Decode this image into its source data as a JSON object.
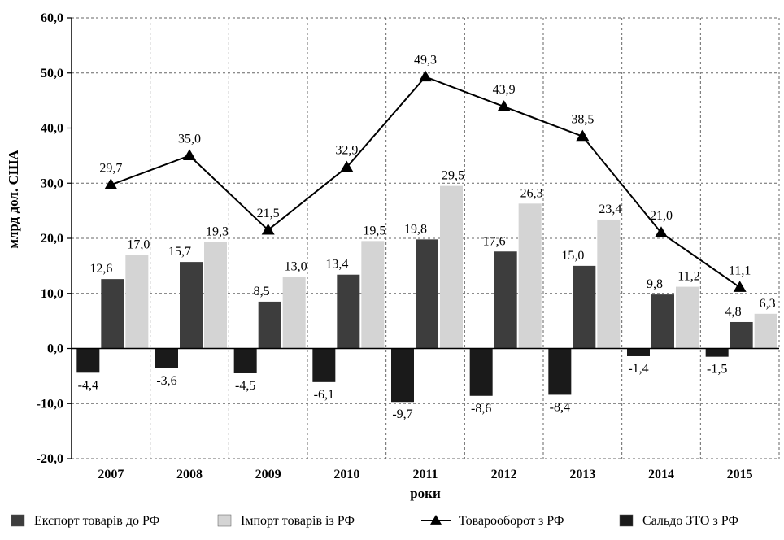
{
  "chart_data": {
    "type": "bar",
    "categories": [
      "2007",
      "2008",
      "2009",
      "2010",
      "2011",
      "2012",
      "2013",
      "2014",
      "2015"
    ],
    "series": [
      {
        "name": "Експорт товарів до РФ",
        "kind": "bar",
        "color": "#3d3d3d",
        "values": [
          12.6,
          15.7,
          8.5,
          13.4,
          19.8,
          17.6,
          15.0,
          9.8,
          4.8
        ],
        "labels": [
          "12,6",
          "15,7",
          "8,5",
          "13,4",
          "19,8",
          "17,6",
          "15,0",
          "9,8",
          "4,8"
        ]
      },
      {
        "name": "Імпорт товарів із РФ",
        "kind": "bar",
        "color": "#d4d4d4",
        "values": [
          17.0,
          19.3,
          13.0,
          19.5,
          29.5,
          26.3,
          23.4,
          11.2,
          6.3
        ],
        "labels": [
          "17,0",
          "19,3",
          "13,0",
          "19,5",
          "29,5",
          "26,3",
          "23,4",
          "11,2",
          "6,3"
        ]
      },
      {
        "name": "Товарооборот з РФ",
        "kind": "line",
        "color": "#000000",
        "values": [
          29.7,
          35.0,
          21.5,
          32.9,
          49.3,
          43.9,
          38.5,
          21.0,
          11.1
        ],
        "labels": [
          "29,7",
          "35,0",
          "21,5",
          "32,9",
          "49,3",
          "43,9",
          "38,5",
          "21,0",
          "11,1"
        ]
      },
      {
        "name": "Сальдо ЗТО з РФ",
        "kind": "bar",
        "color": "#1a1a1a",
        "values": [
          -4.4,
          -3.6,
          -4.5,
          -6.1,
          -9.7,
          -8.6,
          -8.4,
          -1.4,
          -1.5
        ],
        "labels": [
          "-4,4",
          "-3,6",
          "-4,5",
          "-6,1",
          "-9,7",
          "-8,6",
          "-8,4",
          "-1,4",
          "-1,5"
        ]
      }
    ],
    "y_ticks": [
      "60,0",
      "50,0",
      "40,0",
      "30,0",
      "20,0",
      "10,0",
      "0,0",
      "-10,0",
      "-20,0"
    ],
    "ylim": [
      -20,
      60
    ],
    "xlabel": "роки",
    "ylabel": "млрд дол. США",
    "grid": true,
    "legend_position": "bottom"
  }
}
